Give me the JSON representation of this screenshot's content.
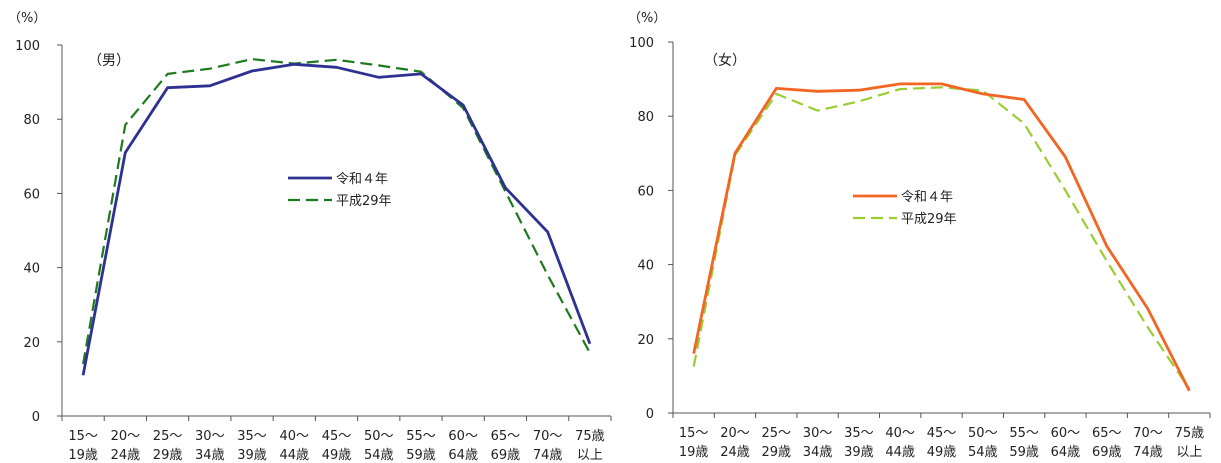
{
  "chart_data": [
    {
      "type": "line",
      "title": "（男）",
      "ylabel": "（%）",
      "ylim": [
        0,
        100
      ],
      "yticks": [
        "0",
        "20",
        "40",
        "60",
        "80",
        "100"
      ],
      "categories": [
        "15～19歳",
        "20～24歳",
        "25～29歳",
        "30～34歳",
        "35～39歳",
        "40～44歳",
        "45～49歳",
        "50～54歳",
        "55～59歳",
        "60～64歳",
        "65～69歳",
        "70～74歳",
        "75歳以上"
      ],
      "cat_lines": [
        [
          "15～",
          "19歳"
        ],
        [
          "20～",
          "24歳"
        ],
        [
          "25～",
          "29歳"
        ],
        [
          "30～",
          "34歳"
        ],
        [
          "35～",
          "39歳"
        ],
        [
          "40～",
          "44歳"
        ],
        [
          "45～",
          "49歳"
        ],
        [
          "50～",
          "54歳"
        ],
        [
          "55～",
          "59歳"
        ],
        [
          "60～",
          "64歳"
        ],
        [
          "65～",
          "69歳"
        ],
        [
          "70～",
          "74歳"
        ],
        [
          "75歳",
          "以上"
        ]
      ],
      "legend": "center",
      "series": [
        {
          "name": "令和４年",
          "color": "#2e3192",
          "dash": "solid",
          "values": [
            11,
            71,
            88.5,
            89,
            93,
            94.8,
            94,
            91.3,
            92.2,
            83.8,
            61.5,
            49.6,
            19.5
          ]
        },
        {
          "name": "平成29年",
          "color": "#1e7a1e",
          "dash": "dashed",
          "values": [
            14,
            78.5,
            92.2,
            93.6,
            96.2,
            95,
            96,
            94.5,
            92.8,
            83,
            60.5,
            38,
            17
          ]
        }
      ]
    },
    {
      "type": "line",
      "title": "（女）",
      "ylabel": "（%）",
      "ylim": [
        0,
        100
      ],
      "yticks": [
        "0",
        "20",
        "40",
        "60",
        "80",
        "100"
      ],
      "categories": [
        "15～19歳",
        "20～24歳",
        "25～29歳",
        "30～34歳",
        "35～39歳",
        "40～44歳",
        "45～49歳",
        "50～54歳",
        "55～59歳",
        "60～64歳",
        "65～69歳",
        "70～74歳",
        "75歳以上"
      ],
      "cat_lines": [
        [
          "15～",
          "19歳"
        ],
        [
          "20～",
          "24歳"
        ],
        [
          "25～",
          "29歳"
        ],
        [
          "30～",
          "34歳"
        ],
        [
          "35～",
          "39歳"
        ],
        [
          "40～",
          "44歳"
        ],
        [
          "45～",
          "49歳"
        ],
        [
          "50～",
          "54歳"
        ],
        [
          "55～",
          "59歳"
        ],
        [
          "60～",
          "64歳"
        ],
        [
          "65～",
          "69歳"
        ],
        [
          "70～",
          "74歳"
        ],
        [
          "75歳",
          "以上"
        ]
      ],
      "legend": "center-left",
      "series": [
        {
          "name": "令和４年",
          "color": "#f26522",
          "dash": "solid",
          "values": [
            16,
            70,
            87.5,
            86.7,
            87,
            88.7,
            88.7,
            86,
            84.5,
            69,
            45,
            28,
            6
          ]
        },
        {
          "name": "平成29年",
          "color": "#9acd32",
          "dash": "dashed",
          "values": [
            12.5,
            69.5,
            86,
            81.5,
            84,
            87.3,
            87.8,
            86.9,
            78,
            60,
            41,
            23,
            6.5
          ]
        }
      ]
    }
  ]
}
